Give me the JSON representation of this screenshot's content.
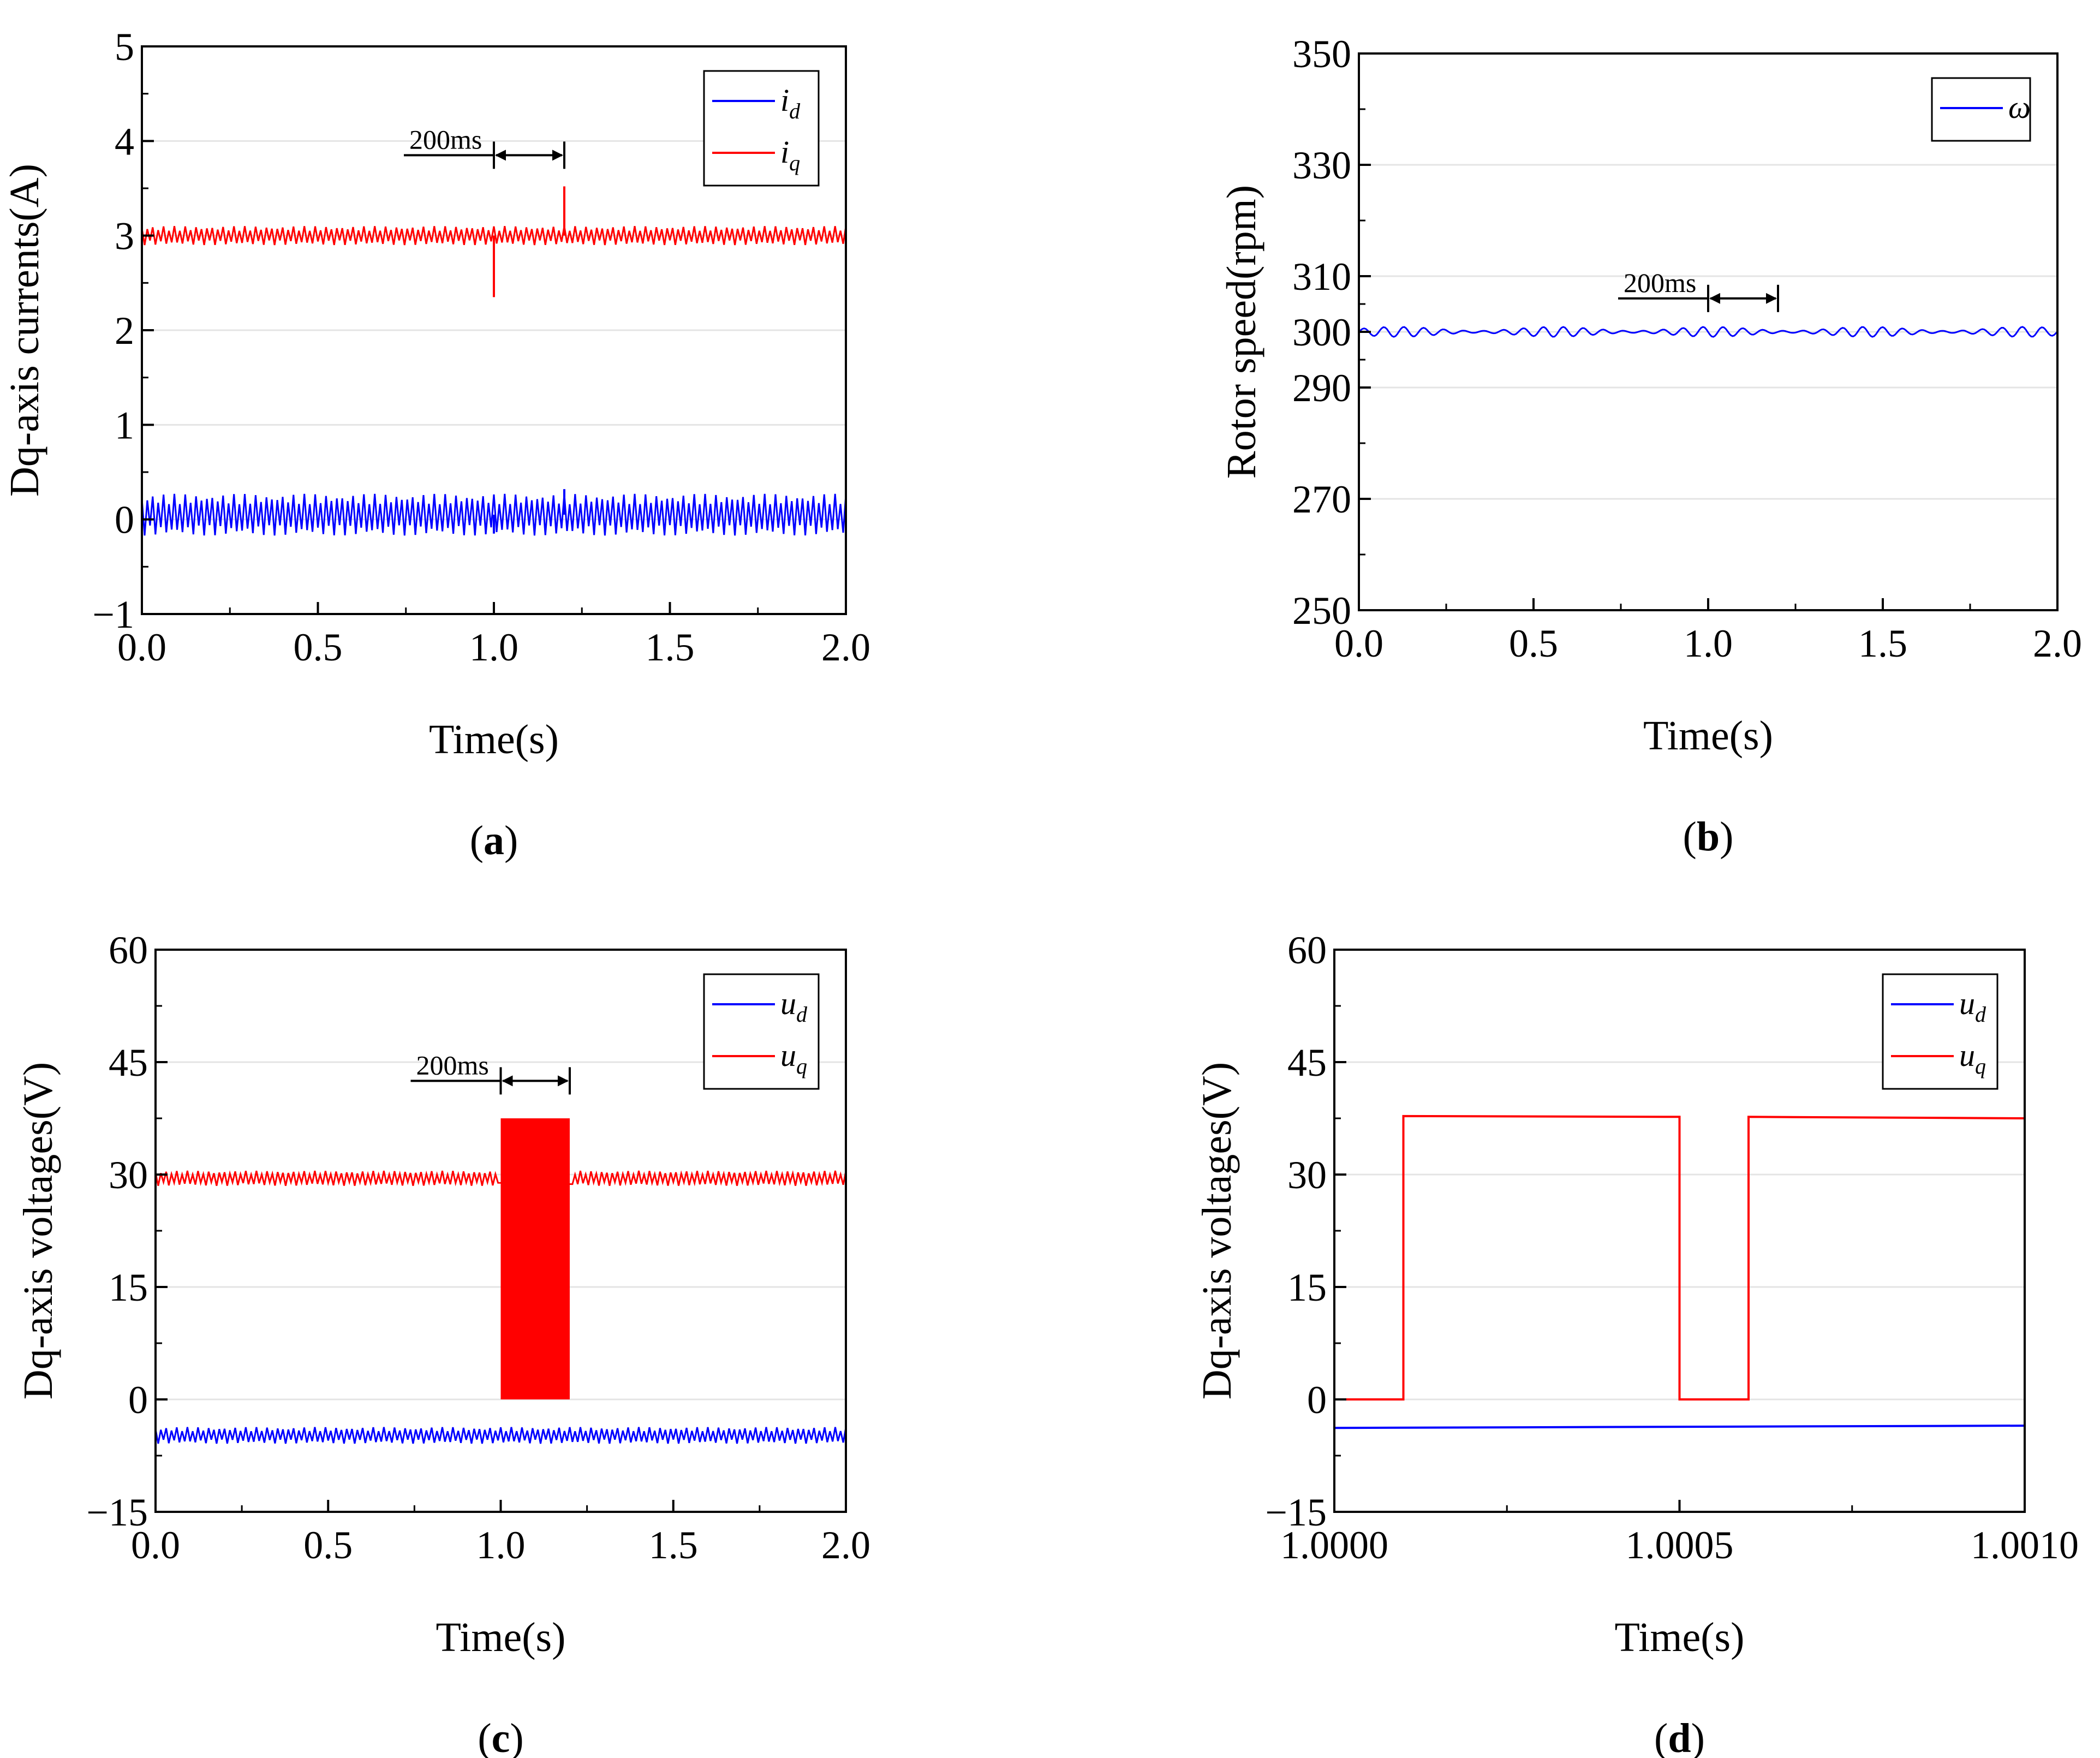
{
  "chart_data": [
    {
      "id": "a",
      "type": "line",
      "panel_label": "a",
      "xlabel": "Time(s)",
      "ylabel": "Dq-axis currents(A)",
      "xlim": [
        0,
        2
      ],
      "ylim": [
        -1,
        5
      ],
      "xticks": [
        0,
        0.5,
        1,
        1.5,
        2
      ],
      "xtick_labels": [
        "0.0",
        "0.5",
        "1.0",
        "1.5",
        "2.0"
      ],
      "yticks": [
        -1,
        0,
        1,
        2,
        3,
        4,
        5
      ],
      "ytick_labels": [
        "−1",
        "0",
        "1",
        "2",
        "3",
        "4",
        "5"
      ],
      "grid": true,
      "legend_position": "top-right",
      "series": [
        {
          "name": "i",
          "sub": "d",
          "color": "#0000ff",
          "kind": "band",
          "x": [
            0,
            2
          ],
          "y": [
            0.05,
            0.05
          ],
          "band_halfwidth": 0.22,
          "events": [
            {
              "x": 1.0,
              "y": -0.15
            },
            {
              "x": 1.2,
              "y": 0.32
            }
          ]
        },
        {
          "name": "i",
          "sub": "q",
          "color": "#ff0000",
          "kind": "band",
          "x": [
            0,
            2
          ],
          "y": [
            3.0,
            3.0
          ],
          "band_halfwidth": 0.1,
          "events": [
            {
              "x": 1.0,
              "y": 2.35
            },
            {
              "x": 1.2,
              "y": 3.52
            }
          ]
        }
      ],
      "annotation": {
        "text": "200ms",
        "x_start": 1.0,
        "x_end": 1.2,
        "y": 3.85
      }
    },
    {
      "id": "b",
      "type": "line",
      "panel_label": "b",
      "xlabel": "Time(s)",
      "ylabel": "Rotor speed(rpm)",
      "xlim": [
        0,
        2
      ],
      "ylim": [
        250,
        350
      ],
      "xticks": [
        0,
        0.5,
        1,
        1.5,
        2
      ],
      "xtick_labels": [
        "0.0",
        "0.5",
        "1.0",
        "1.5",
        "2.0"
      ],
      "yticks": [
        250,
        270,
        290,
        300,
        310,
        330,
        350
      ],
      "ytick_labels": [
        "250",
        "270",
        "290",
        "300",
        "310",
        "330",
        "350"
      ],
      "grid": true,
      "legend_position": "top-right",
      "series": [
        {
          "name": "ω",
          "sub": "",
          "color": "#0000ff",
          "kind": "wave",
          "x": [
            0,
            2
          ],
          "y": [
            300,
            300
          ],
          "amplitude": 0.9
        }
      ],
      "annotation": {
        "text": "200ms",
        "x_start": 1.0,
        "x_end": 1.2,
        "y": 306
      }
    },
    {
      "id": "c",
      "type": "line",
      "panel_label": "c",
      "xlabel": "Time(s)",
      "ylabel": "Dq-axis voltages(V)",
      "xlim": [
        0,
        2
      ],
      "ylim": [
        -15,
        60
      ],
      "xticks": [
        0,
        0.5,
        1,
        1.5,
        2
      ],
      "xtick_labels": [
        "0.0",
        "0.5",
        "1.0",
        "1.5",
        "2.0"
      ],
      "yticks": [
        -15,
        0,
        15,
        30,
        45,
        60
      ],
      "ytick_labels": [
        "−15",
        "0",
        "15",
        "30",
        "45",
        "60"
      ],
      "grid": true,
      "legend_position": "top-right",
      "series": [
        {
          "name": "u",
          "sub": "d",
          "color": "#0000ff",
          "kind": "band",
          "x": [
            0,
            2
          ],
          "y": [
            -4.8,
            -4.8
          ],
          "band_halfwidth": 1.1
        },
        {
          "name": "u",
          "sub": "q",
          "color": "#ff0000",
          "kind": "band",
          "x": [
            0,
            2
          ],
          "y": [
            29.5,
            29.5
          ],
          "band_halfwidth": 1.0,
          "block": {
            "x_start": 1.0,
            "x_end": 1.2,
            "y_low": 0,
            "y_high": 37.5
          }
        }
      ],
      "annotation": {
        "text": "200ms",
        "x_start": 1.0,
        "x_end": 1.2,
        "y": 42.5
      }
    },
    {
      "id": "d",
      "type": "line",
      "panel_label": "d",
      "xlabel": "Time(s)",
      "ylabel": "Dq-axis voltages(V)",
      "xlim": [
        1.0,
        1.001
      ],
      "ylim": [
        -15,
        60
      ],
      "xticks": [
        1.0,
        1.0005,
        1.001
      ],
      "xtick_labels": [
        "1.0000",
        "1.0005",
        "1.0010"
      ],
      "yticks": [
        -15,
        0,
        15,
        30,
        45,
        60
      ],
      "ytick_labels": [
        "−15",
        "0",
        "15",
        "30",
        "45",
        "60"
      ],
      "grid": true,
      "legend_position": "top-right",
      "series": [
        {
          "name": "u",
          "sub": "d",
          "color": "#0000ff",
          "kind": "line",
          "x": [
            1.0,
            1.001
          ],
          "y": [
            -3.8,
            -3.5
          ]
        },
        {
          "name": "u",
          "sub": "q",
          "color": "#ff0000",
          "kind": "line",
          "x": [
            1.0,
            1.0001,
            1.0001,
            1.0005,
            1.0005,
            1.0006,
            1.0006,
            1.001
          ],
          "y": [
            0,
            0,
            37.8,
            37.7,
            0,
            0,
            37.7,
            37.5
          ]
        }
      ]
    }
  ]
}
